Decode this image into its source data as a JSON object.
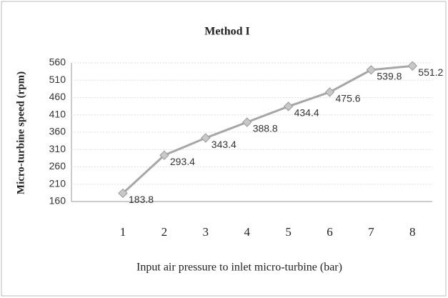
{
  "chart_data": {
    "type": "line",
    "title": "Method I",
    "x_label": "Input air pressure  to inlet micro-turbine (bar)",
    "y_label": "Micro-turbine speed (rpm)",
    "categories": [
      "1",
      "2",
      "3",
      "4",
      "5",
      "6",
      "7",
      "8"
    ],
    "values": [
      183.8,
      293.4,
      343.4,
      388.8,
      434.4,
      475.6,
      539.8,
      551.2
    ],
    "color": "#a6a6a6",
    "ylim": [
      160,
      560
    ],
    "yticks": [
      160,
      210,
      260,
      310,
      360,
      410,
      460,
      510,
      560
    ],
    "grid": true
  }
}
